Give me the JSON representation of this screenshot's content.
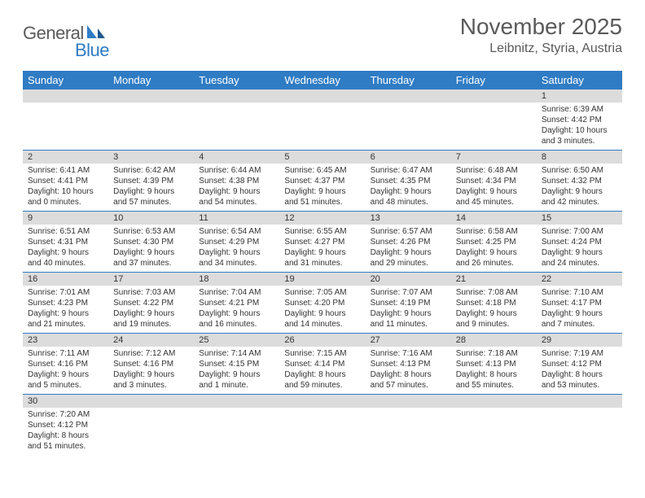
{
  "logo": {
    "part1": "General",
    "part2": "Blue"
  },
  "title": "November 2025",
  "subtitle": "Leibnitz, Styria, Austria",
  "colors": {
    "header_bg": "#2f7cc4",
    "daynum_bg": "#dcdcdc",
    "rule": "#2f7cc4",
    "text": "#5a5a5a"
  },
  "weekdays": [
    "Sunday",
    "Monday",
    "Tuesday",
    "Wednesday",
    "Thursday",
    "Friday",
    "Saturday"
  ],
  "weeks": [
    [
      {
        "n": "",
        "lines": []
      },
      {
        "n": "",
        "lines": []
      },
      {
        "n": "",
        "lines": []
      },
      {
        "n": "",
        "lines": []
      },
      {
        "n": "",
        "lines": []
      },
      {
        "n": "",
        "lines": []
      },
      {
        "n": "1",
        "lines": [
          "Sunrise: 6:39 AM",
          "Sunset: 4:42 PM",
          "Daylight: 10 hours",
          "and 3 minutes."
        ]
      }
    ],
    [
      {
        "n": "2",
        "lines": [
          "Sunrise: 6:41 AM",
          "Sunset: 4:41 PM",
          "Daylight: 10 hours",
          "and 0 minutes."
        ]
      },
      {
        "n": "3",
        "lines": [
          "Sunrise: 6:42 AM",
          "Sunset: 4:39 PM",
          "Daylight: 9 hours",
          "and 57 minutes."
        ]
      },
      {
        "n": "4",
        "lines": [
          "Sunrise: 6:44 AM",
          "Sunset: 4:38 PM",
          "Daylight: 9 hours",
          "and 54 minutes."
        ]
      },
      {
        "n": "5",
        "lines": [
          "Sunrise: 6:45 AM",
          "Sunset: 4:37 PM",
          "Daylight: 9 hours",
          "and 51 minutes."
        ]
      },
      {
        "n": "6",
        "lines": [
          "Sunrise: 6:47 AM",
          "Sunset: 4:35 PM",
          "Daylight: 9 hours",
          "and 48 minutes."
        ]
      },
      {
        "n": "7",
        "lines": [
          "Sunrise: 6:48 AM",
          "Sunset: 4:34 PM",
          "Daylight: 9 hours",
          "and 45 minutes."
        ]
      },
      {
        "n": "8",
        "lines": [
          "Sunrise: 6:50 AM",
          "Sunset: 4:32 PM",
          "Daylight: 9 hours",
          "and 42 minutes."
        ]
      }
    ],
    [
      {
        "n": "9",
        "lines": [
          "Sunrise: 6:51 AM",
          "Sunset: 4:31 PM",
          "Daylight: 9 hours",
          "and 40 minutes."
        ]
      },
      {
        "n": "10",
        "lines": [
          "Sunrise: 6:53 AM",
          "Sunset: 4:30 PM",
          "Daylight: 9 hours",
          "and 37 minutes."
        ]
      },
      {
        "n": "11",
        "lines": [
          "Sunrise: 6:54 AM",
          "Sunset: 4:29 PM",
          "Daylight: 9 hours",
          "and 34 minutes."
        ]
      },
      {
        "n": "12",
        "lines": [
          "Sunrise: 6:55 AM",
          "Sunset: 4:27 PM",
          "Daylight: 9 hours",
          "and 31 minutes."
        ]
      },
      {
        "n": "13",
        "lines": [
          "Sunrise: 6:57 AM",
          "Sunset: 4:26 PM",
          "Daylight: 9 hours",
          "and 29 minutes."
        ]
      },
      {
        "n": "14",
        "lines": [
          "Sunrise: 6:58 AM",
          "Sunset: 4:25 PM",
          "Daylight: 9 hours",
          "and 26 minutes."
        ]
      },
      {
        "n": "15",
        "lines": [
          "Sunrise: 7:00 AM",
          "Sunset: 4:24 PM",
          "Daylight: 9 hours",
          "and 24 minutes."
        ]
      }
    ],
    [
      {
        "n": "16",
        "lines": [
          "Sunrise: 7:01 AM",
          "Sunset: 4:23 PM",
          "Daylight: 9 hours",
          "and 21 minutes."
        ]
      },
      {
        "n": "17",
        "lines": [
          "Sunrise: 7:03 AM",
          "Sunset: 4:22 PM",
          "Daylight: 9 hours",
          "and 19 minutes."
        ]
      },
      {
        "n": "18",
        "lines": [
          "Sunrise: 7:04 AM",
          "Sunset: 4:21 PM",
          "Daylight: 9 hours",
          "and 16 minutes."
        ]
      },
      {
        "n": "19",
        "lines": [
          "Sunrise: 7:05 AM",
          "Sunset: 4:20 PM",
          "Daylight: 9 hours",
          "and 14 minutes."
        ]
      },
      {
        "n": "20",
        "lines": [
          "Sunrise: 7:07 AM",
          "Sunset: 4:19 PM",
          "Daylight: 9 hours",
          "and 11 minutes."
        ]
      },
      {
        "n": "21",
        "lines": [
          "Sunrise: 7:08 AM",
          "Sunset: 4:18 PM",
          "Daylight: 9 hours",
          "and 9 minutes."
        ]
      },
      {
        "n": "22",
        "lines": [
          "Sunrise: 7:10 AM",
          "Sunset: 4:17 PM",
          "Daylight: 9 hours",
          "and 7 minutes."
        ]
      }
    ],
    [
      {
        "n": "23",
        "lines": [
          "Sunrise: 7:11 AM",
          "Sunset: 4:16 PM",
          "Daylight: 9 hours",
          "and 5 minutes."
        ]
      },
      {
        "n": "24",
        "lines": [
          "Sunrise: 7:12 AM",
          "Sunset: 4:16 PM",
          "Daylight: 9 hours",
          "and 3 minutes."
        ]
      },
      {
        "n": "25",
        "lines": [
          "Sunrise: 7:14 AM",
          "Sunset: 4:15 PM",
          "Daylight: 9 hours",
          "and 1 minute."
        ]
      },
      {
        "n": "26",
        "lines": [
          "Sunrise: 7:15 AM",
          "Sunset: 4:14 PM",
          "Daylight: 8 hours",
          "and 59 minutes."
        ]
      },
      {
        "n": "27",
        "lines": [
          "Sunrise: 7:16 AM",
          "Sunset: 4:13 PM",
          "Daylight: 8 hours",
          "and 57 minutes."
        ]
      },
      {
        "n": "28",
        "lines": [
          "Sunrise: 7:18 AM",
          "Sunset: 4:13 PM",
          "Daylight: 8 hours",
          "and 55 minutes."
        ]
      },
      {
        "n": "29",
        "lines": [
          "Sunrise: 7:19 AM",
          "Sunset: 4:12 PM",
          "Daylight: 8 hours",
          "and 53 minutes."
        ]
      }
    ],
    [
      {
        "n": "30",
        "lines": [
          "Sunrise: 7:20 AM",
          "Sunset: 4:12 PM",
          "Daylight: 8 hours",
          "and 51 minutes."
        ]
      },
      {
        "n": "",
        "lines": []
      },
      {
        "n": "",
        "lines": []
      },
      {
        "n": "",
        "lines": []
      },
      {
        "n": "",
        "lines": []
      },
      {
        "n": "",
        "lines": []
      },
      {
        "n": "",
        "lines": []
      }
    ]
  ]
}
